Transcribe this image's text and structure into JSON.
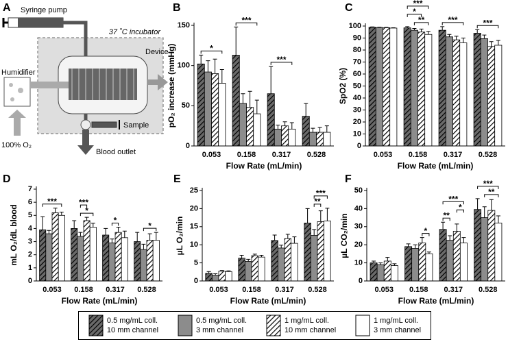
{
  "diagram": {
    "label": "A",
    "syringe_pump": "Syringe pump",
    "incubator": "37 ˚C incubator",
    "device": "Device",
    "humidifier": "Humidifier",
    "sample": "Sample",
    "oxygen": "100% O₂",
    "outlet": "Blood outlet"
  },
  "legend": {
    "entries": [
      {
        "name": "0.5 mg/mL coll.\n10 mm channel",
        "color": "#6a6a6a",
        "pattern": "hatch"
      },
      {
        "name": "0.5 mg/mL coll.\n3 mm channel",
        "color": "#8c8c8c",
        "pattern": "solid"
      },
      {
        "name": "1 mg/mL coll.\n10 mm channel",
        "color": "#ffffff",
        "pattern": "hatch"
      },
      {
        "name": "1 mg/mL coll.\n3 mm channel",
        "color": "#ffffff",
        "pattern": "solid"
      }
    ]
  },
  "chart_data": [
    {
      "type": "bar",
      "label": "B",
      "ylabel": "pO₂ increase (mmHg)",
      "xlabel": "Flow Rate (mL/min)",
      "categories": [
        "0.053",
        "0.158",
        "0.317",
        "0.528"
      ],
      "ylim": [
        0,
        150
      ],
      "yticks": [
        0,
        50,
        100,
        150
      ],
      "series": [
        {
          "values": [
            102,
            113,
            65,
            37
          ],
          "errors": [
            11,
            35,
            34,
            16
          ]
        },
        {
          "values": [
            92,
            53,
            21,
            17
          ],
          "errors": [
            14,
            12,
            5,
            5
          ]
        },
        {
          "values": [
            90,
            48,
            25,
            17
          ],
          "errors": [
            18,
            20,
            5,
            6
          ]
        },
        {
          "values": [
            78,
            40,
            21,
            17
          ],
          "errors": [
            17,
            17,
            8,
            8
          ]
        }
      ],
      "annotations": [
        {
          "text": "*",
          "category": 0,
          "from": 0,
          "to": 3
        },
        {
          "text": "***",
          "category": 1,
          "from": 0,
          "to": 3
        },
        {
          "text": "***",
          "category": 2,
          "from": 0,
          "to": 3
        }
      ]
    },
    {
      "type": "bar",
      "label": "C",
      "ylabel": "SpO2 (%)",
      "xlabel": "Flow Rate (mL/min)",
      "categories": [
        "0.053",
        "0.158",
        "0.317",
        "0.528"
      ],
      "ylim": [
        0,
        100
      ],
      "yticks": [
        0,
        10,
        20,
        30,
        40,
        50,
        60,
        70,
        80,
        90,
        100
      ],
      "series": [
        {
          "values": [
            99,
            98.5,
            96.5,
            94
          ],
          "errors": [
            0.3,
            1,
            3,
            3
          ]
        },
        {
          "values": [
            98.8,
            96.5,
            91,
            89.5
          ],
          "errors": [
            0.3,
            1.5,
            2,
            3
          ]
        },
        {
          "values": [
            98.6,
            95,
            88.5,
            83
          ],
          "errors": [
            0.3,
            2.5,
            3,
            4
          ]
        },
        {
          "values": [
            98.3,
            93,
            86,
            84
          ],
          "errors": [
            0.3,
            2.5,
            4,
            4
          ]
        }
      ],
      "annotations": [
        {
          "text": "**",
          "category": 1,
          "from": 1,
          "to": 3
        },
        {
          "text": "*",
          "category": 1,
          "from": 0,
          "to": 2
        },
        {
          "text": "***",
          "category": 1,
          "from": 0,
          "to": 3
        },
        {
          "text": "***",
          "category": 2,
          "from": 0,
          "to": 3
        },
        {
          "text": "***",
          "category": 3,
          "from": 0,
          "to": 3
        }
      ]
    },
    {
      "type": "bar",
      "label": "D",
      "ylabel": "mL O₂/dL blood",
      "xlabel": "Flow Rate (mL/min)",
      "categories": [
        "0.053",
        "0.158",
        "0.317",
        "0.528"
      ],
      "ylim": [
        0,
        7
      ],
      "yticks": [
        0,
        1,
        2,
        3,
        4,
        5,
        6,
        7
      ],
      "series": [
        {
          "values": [
            3.9,
            4.0,
            3.5,
            3.0
          ],
          "errors": [
            1.0,
            0.6,
            0.5,
            0.7
          ]
        },
        {
          "values": [
            3.6,
            3.4,
            2.9,
            2.4
          ],
          "errors": [
            0.25,
            0.3,
            0.3,
            0.4
          ]
        },
        {
          "values": [
            5.2,
            4.6,
            3.7,
            3.1
          ],
          "errors": [
            0.35,
            0.25,
            0.4,
            0.5
          ]
        },
        {
          "values": [
            5.0,
            4.1,
            3.3,
            3.1
          ],
          "errors": [
            0.25,
            0.3,
            0.5,
            0.6
          ]
        }
      ],
      "annotations": [
        {
          "text": "***",
          "category": 0,
          "from": 0,
          "to": 3
        },
        {
          "text": "*",
          "category": 1,
          "from": 1,
          "to": 3
        },
        {
          "text": "***",
          "category": 1,
          "from": 1,
          "to": 2
        },
        {
          "text": "*",
          "category": 2,
          "from": 1,
          "to": 2
        },
        {
          "text": "*",
          "category": 3,
          "from": 1,
          "to": 3
        }
      ]
    },
    {
      "type": "bar",
      "label": "E",
      "ylabel": "µL O₂/min",
      "xlabel": "Flow Rate (mL/min)",
      "categories": [
        "0.053",
        "0.158",
        "0.317",
        "0.528"
      ],
      "ylim": [
        0,
        25
      ],
      "yticks": [
        0,
        5,
        10,
        15,
        20,
        25
      ],
      "series": [
        {
          "values": [
            2.1,
            6.3,
            11.2,
            16.0
          ],
          "errors": [
            0.5,
            0.8,
            1.5,
            4
          ]
        },
        {
          "values": [
            1.6,
            5.4,
            9.1,
            12.6
          ],
          "errors": [
            0.4,
            0.6,
            0.8,
            1.6
          ]
        },
        {
          "values": [
            2.7,
            7.0,
            11.7,
            16.4
          ],
          "errors": [
            0.2,
            0.4,
            1.2,
            3
          ]
        },
        {
          "values": [
            2.6,
            6.6,
            10.4,
            16.6
          ],
          "errors": [
            0.2,
            0.5,
            1.8,
            3.5
          ]
        }
      ],
      "annotations": [
        {
          "text": "**",
          "category": 3,
          "from": 1,
          "to": 2
        },
        {
          "text": "***",
          "category": 3,
          "from": 1,
          "to": 3
        }
      ]
    },
    {
      "type": "bar",
      "label": "F",
      "ylabel": "µL CO₂/min",
      "xlabel": "Flow Rate (mL/min)",
      "categories": [
        "0.053",
        "0.158",
        "0.317",
        "0.528"
      ],
      "ylim": [
        0,
        50
      ],
      "yticks": [
        0,
        10,
        20,
        30,
        40,
        50
      ],
      "series": [
        {
          "values": [
            10,
            19,
            28.5,
            39.5
          ],
          "errors": [
            1,
            1.5,
            4,
            6
          ]
        },
        {
          "values": [
            9,
            18,
            22.5,
            35
          ],
          "errors": [
            1,
            2,
            2.5,
            6
          ]
        },
        {
          "values": [
            11,
            21,
            27.5,
            39
          ],
          "errors": [
            2,
            3,
            4,
            6
          ]
        },
        {
          "values": [
            8.5,
            15,
            21,
            32
          ],
          "errors": [
            1,
            1,
            3,
            4
          ]
        }
      ],
      "annotations": [
        {
          "text": "*",
          "category": 1,
          "from": 2,
          "to": 3
        },
        {
          "text": "**",
          "category": 2,
          "from": 0,
          "to": 1
        },
        {
          "text": "*",
          "category": 2,
          "from": 2,
          "to": 3
        },
        {
          "text": "***",
          "category": 2,
          "from": 0,
          "to": 3
        },
        {
          "text": "**",
          "category": 3,
          "from": 1,
          "to": 3
        },
        {
          "text": "***",
          "category": 3,
          "from": 0,
          "to": 3
        }
      ]
    }
  ]
}
